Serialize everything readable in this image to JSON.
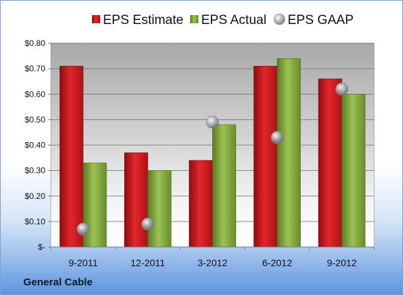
{
  "company": "General Cable",
  "colors": {
    "estimate": "#c8161d",
    "actual": "#7ea33a",
    "gaap": "#b9bec6"
  },
  "chart_data": {
    "type": "bar",
    "categories": [
      "9-2011",
      "12-2011",
      "3-2012",
      "6-2012",
      "9-2012"
    ],
    "series": [
      {
        "name": "EPS Estimate",
        "type": "bar",
        "values": [
          0.71,
          0.37,
          0.34,
          0.71,
          0.66
        ]
      },
      {
        "name": "EPS Actual",
        "type": "bar",
        "values": [
          0.33,
          0.3,
          0.48,
          0.74,
          0.6
        ]
      },
      {
        "name": "EPS GAAP",
        "type": "scatter",
        "values": [
          0.07,
          0.09,
          0.49,
          0.43,
          0.62
        ]
      }
    ],
    "y_ticks": [
      "$-",
      "$0.10",
      "$0.20",
      "$0.30",
      "$0.40",
      "$0.50",
      "$0.60",
      "$0.70",
      "$0.80"
    ],
    "ylim": [
      0,
      0.8
    ],
    "grid": true,
    "legend_position": "top"
  }
}
